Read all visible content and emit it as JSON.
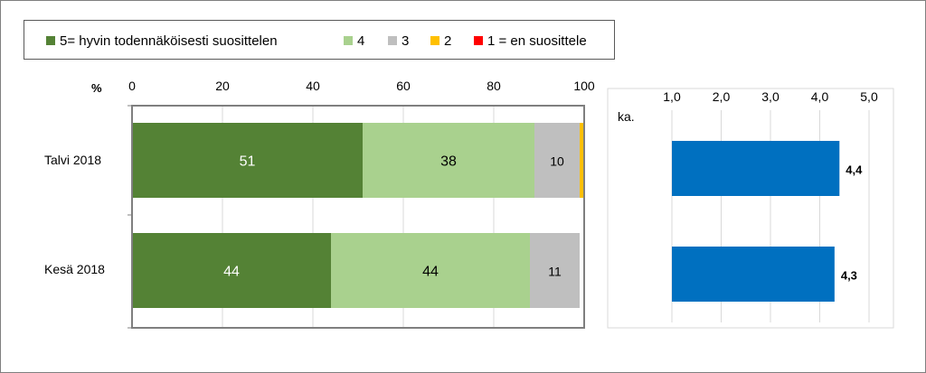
{
  "chart_data": [
    {
      "type": "bar",
      "orientation": "horizontal",
      "stacked": true,
      "unit_label": "%",
      "xlim": [
        0,
        100
      ],
      "x_ticks": [
        "0",
        "20",
        "40",
        "60",
        "80",
        "100"
      ],
      "categories": [
        "Talvi 2018",
        "Kesä 2018"
      ],
      "series": [
        {
          "name": "5= hyvin todennäköisesti suosittelen",
          "color": "#548235",
          "values": [
            51,
            44
          ],
          "labels": [
            "51",
            "44"
          ]
        },
        {
          "name": "4",
          "color": "#a9d18e",
          "values": [
            38,
            44
          ],
          "labels": [
            "38",
            "44"
          ]
        },
        {
          "name": "3",
          "color": "#bfbfbf",
          "values": [
            10,
            11
          ],
          "labels": [
            "10",
            "11"
          ]
        },
        {
          "name": "2",
          "color": "#ffc000",
          "values": [
            1,
            0
          ],
          "labels": [
            "",
            ""
          ]
        },
        {
          "name": "1 = en suosittele",
          "color": "#ff0000",
          "values": [
            0,
            0
          ],
          "labels": [
            "",
            ""
          ]
        }
      ],
      "legend_position": "top",
      "grid": true
    },
    {
      "type": "bar",
      "orientation": "horizontal",
      "unit_label": "ka.",
      "xlim": [
        1,
        5
      ],
      "x_ticks": [
        "1,0",
        "2,0",
        "3,0",
        "4,0",
        "5,0"
      ],
      "categories": [
        "Talvi 2018",
        "Kesä 2018"
      ],
      "series": [
        {
          "color": "#0070c0",
          "values": [
            4.4,
            4.3
          ],
          "labels": [
            "4,4",
            "4,3"
          ]
        }
      ],
      "grid": true
    }
  ]
}
